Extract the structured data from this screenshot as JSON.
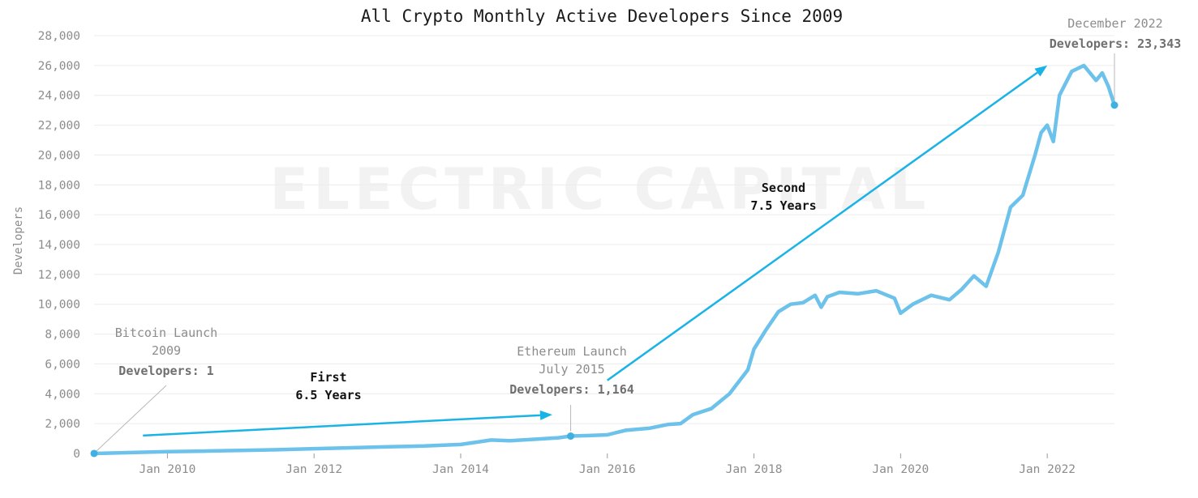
{
  "chart_data": {
    "type": "line",
    "title": "All Crypto Monthly Active Developers Since 2009",
    "ylabel": "Developers",
    "xlabel": "",
    "ylim": [
      0,
      28000
    ],
    "xlim": [
      "2009-01",
      "2022-12"
    ],
    "y_ticks": [
      "0",
      "2,000",
      "4,000",
      "6,000",
      "8,000",
      "10,000",
      "12,000",
      "14,000",
      "16,000",
      "18,000",
      "20,000",
      "22,000",
      "24,000",
      "26,000",
      "28,000"
    ],
    "x_ticks": [
      {
        "date": "2010-01",
        "label": "Jan 2010"
      },
      {
        "date": "2012-01",
        "label": "Jan 2012"
      },
      {
        "date": "2014-01",
        "label": "Jan 2014"
      },
      {
        "date": "2016-01",
        "label": "Jan 2016"
      },
      {
        "date": "2018-01",
        "label": "Jan 2018"
      },
      {
        "date": "2020-01",
        "label": "Jan 2020"
      },
      {
        "date": "2022-01",
        "label": "Jan 2022"
      }
    ],
    "grid": "horizontal",
    "line_color": "#6cc2ea",
    "arrow_color": "#1ab3e6",
    "watermark": "ELECTRIC CAPITAL",
    "series": [
      {
        "values": [
          [
            "2009-01",
            1
          ],
          [
            "2009-07",
            60
          ],
          [
            "2010-01",
            120
          ],
          [
            "2010-07",
            160
          ],
          [
            "2011-01",
            200
          ],
          [
            "2011-07",
            250
          ],
          [
            "2012-01",
            320
          ],
          [
            "2012-07",
            380
          ],
          [
            "2013-01",
            450
          ],
          [
            "2013-07",
            500
          ],
          [
            "2014-01",
            600
          ],
          [
            "2014-04",
            780
          ],
          [
            "2014-06",
            900
          ],
          [
            "2014-09",
            850
          ],
          [
            "2015-01",
            950
          ],
          [
            "2015-05",
            1050
          ],
          [
            "2015-07",
            1164
          ],
          [
            "2015-10",
            1200
          ],
          [
            "2016-01",
            1250
          ],
          [
            "2016-04",
            1550
          ],
          [
            "2016-08",
            1700
          ],
          [
            "2016-11",
            1950
          ],
          [
            "2017-01",
            2000
          ],
          [
            "2017-03",
            2600
          ],
          [
            "2017-06",
            3000
          ],
          [
            "2017-09",
            4000
          ],
          [
            "2017-12",
            5600
          ],
          [
            "2018-01",
            7000
          ],
          [
            "2018-03",
            8300
          ],
          [
            "2018-05",
            9500
          ],
          [
            "2018-07",
            10000
          ],
          [
            "2018-09",
            10100
          ],
          [
            "2018-11",
            10600
          ],
          [
            "2018-12",
            9800
          ],
          [
            "2019-01",
            10500
          ],
          [
            "2019-03",
            10800
          ],
          [
            "2019-06",
            10700
          ],
          [
            "2019-09",
            10900
          ],
          [
            "2019-12",
            10400
          ],
          [
            "2020-01",
            9400
          ],
          [
            "2020-03",
            10000
          ],
          [
            "2020-06",
            10600
          ],
          [
            "2020-09",
            10300
          ],
          [
            "2020-11",
            11000
          ],
          [
            "2021-01",
            11900
          ],
          [
            "2021-03",
            11200
          ],
          [
            "2021-05",
            13500
          ],
          [
            "2021-07",
            16500
          ],
          [
            "2021-09",
            17300
          ],
          [
            "2021-11",
            20000
          ],
          [
            "2021-12",
            21500
          ],
          [
            "2022-01",
            22000
          ],
          [
            "2022-02",
            20900
          ],
          [
            "2022-03",
            24000
          ],
          [
            "2022-05",
            25600
          ],
          [
            "2022-07",
            26000
          ],
          [
            "2022-09",
            25000
          ],
          [
            "2022-10",
            25500
          ],
          [
            "2022-11",
            24600
          ],
          [
            "2022-12",
            23343
          ]
        ]
      }
    ],
    "markers": [
      {
        "date": "2009-01",
        "value": 1
      },
      {
        "date": "2015-07",
        "value": 1164
      },
      {
        "date": "2022-12",
        "value": 23343
      }
    ],
    "annotations": {
      "bitcoin": {
        "line1": "Bitcoin Launch",
        "line2": "2009",
        "line3": "Developers: 1"
      },
      "ethereum": {
        "line1": "Ethereum Launch",
        "line2": "July 2015",
        "line3": "Developers: 1,164"
      },
      "latest": {
        "line1": "December 2022",
        "line2": "Developers: 23,343"
      },
      "first": {
        "line1": "First",
        "line2": "6.5 Years"
      },
      "second": {
        "line1": "Second",
        "line2": "7.5 Years"
      }
    },
    "arrows": [
      {
        "from": [
          "2009-09",
          1200
        ],
        "to": [
          "2015-04",
          2600
        ]
      },
      {
        "from": [
          "2016-01",
          4900
        ],
        "to": [
          "2022-01",
          26000
        ]
      }
    ]
  }
}
